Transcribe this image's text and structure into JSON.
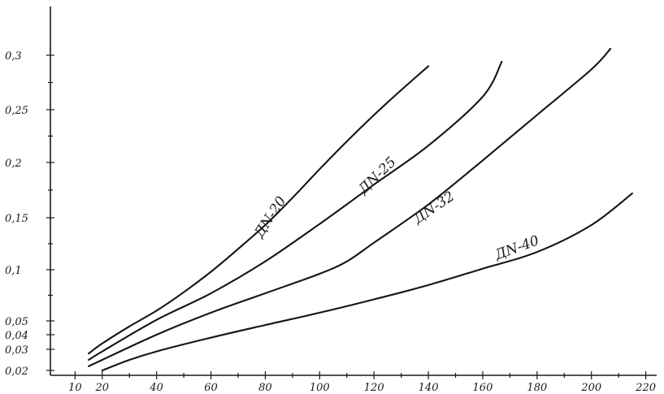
{
  "chart_data": {
    "type": "line",
    "title": "",
    "xlabel": "",
    "ylabel": "",
    "grid": false,
    "legend": "none",
    "xlim": [
      5,
      225
    ],
    "ylim": [
      0.015,
      0.33
    ],
    "x_ticks": [
      10,
      20,
      40,
      60,
      80,
      100,
      120,
      140,
      160,
      180,
      200,
      220
    ],
    "x_tick_labels": [
      "10",
      "20",
      "40",
      "60",
      "80",
      "100",
      "120",
      "140",
      "160",
      "180",
      "200",
      "220"
    ],
    "y_ticks": [
      0.02,
      0.03,
      0.04,
      0.05,
      0.1,
      0.15,
      0.2,
      0.25,
      0.3
    ],
    "y_tick_labels": [
      "0,02",
      "0,03",
      "0,04",
      "0,05",
      "0,1",
      "0,15",
      "0,2",
      "0,25",
      "0,3"
    ],
    "series": [
      {
        "name": "ДN-20",
        "x": [
          15,
          20,
          30,
          40,
          50,
          60,
          70,
          80,
          90,
          100,
          110,
          120,
          130,
          140
        ],
        "y": [
          0.028,
          0.034,
          0.046,
          0.06,
          0.078,
          0.098,
          0.12,
          0.143,
          0.168,
          0.194,
          0.22,
          0.245,
          0.268,
          0.29
        ]
      },
      {
        "name": "ДN-25",
        "x": [
          15,
          20,
          40,
          60,
          80,
          100,
          120,
          140,
          160,
          167
        ],
        "y": [
          0.025,
          0.029,
          0.051,
          0.077,
          0.108,
          0.144,
          0.18,
          0.216,
          0.262,
          0.294
        ]
      },
      {
        "name": "ДN-32",
        "x": [
          15,
          20,
          40,
          60,
          80,
          100,
          110,
          120,
          140,
          160,
          180,
          200,
          207
        ],
        "y": [
          0.022,
          0.025,
          0.04,
          0.058,
          0.077,
          0.096,
          0.108,
          0.126,
          0.162,
          0.202,
          0.245,
          0.287,
          0.306
        ]
      },
      {
        "name": "ДN-40",
        "x": [
          20,
          30,
          40,
          60,
          80,
          100,
          120,
          140,
          160,
          180,
          200,
          215
        ],
        "y": [
          0.02,
          0.025,
          0.029,
          0.038,
          0.047,
          0.058,
          0.071,
          0.085,
          0.101,
          0.117,
          0.143,
          0.172
        ]
      }
    ]
  }
}
